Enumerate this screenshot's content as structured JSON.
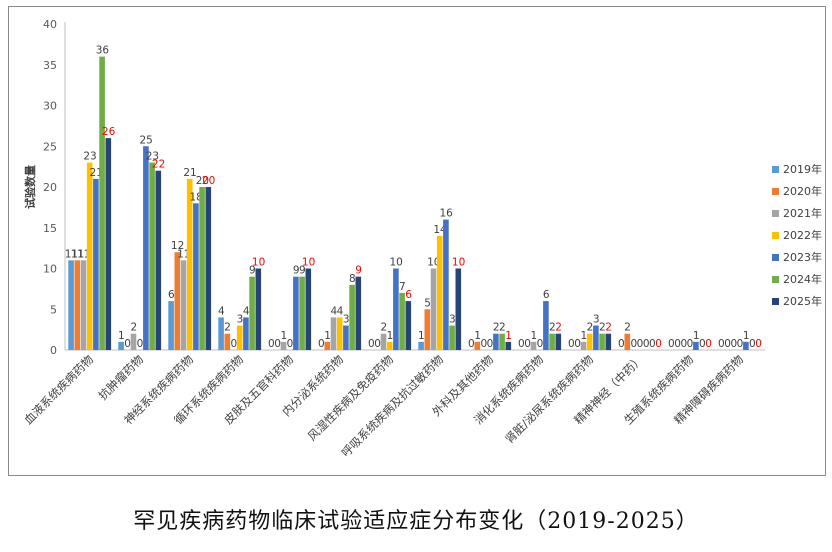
{
  "caption": "罕见疾病药物临床试验适应症分布变化（2019-2025）",
  "chart_data": {
    "type": "bar",
    "title": "",
    "xlabel": "",
    "ylabel": "试验数量",
    "ylim": [
      0,
      40
    ],
    "yticks": [
      0,
      5,
      10,
      15,
      20,
      25,
      30,
      35,
      40
    ],
    "grid": false,
    "legend_position": "right",
    "categories": [
      "血液系统疾病药物",
      "抗肿瘤药物",
      "神经系统疾病药物",
      "循环系统疾病药物",
      "皮肤及五官科药物",
      "内分泌系统药物",
      "风湿性疾病及免疫药物",
      "呼吸系统疾病及抗过敏药物",
      "外科及其他药物",
      "消化系统疾病药物",
      "肾脏/泌尿系统疾病药物",
      "精神神经（中药）",
      "生殖系统疾病药物",
      "精神障碍疾病药物"
    ],
    "series": [
      {
        "name": "2019年",
        "color": "#5b9bd5",
        "values": [
          11,
          1,
          6,
          4,
          0,
          0,
          0,
          1,
          0,
          0,
          0,
          0,
          0,
          0
        ]
      },
      {
        "name": "2020年",
        "color": "#ed7d31",
        "values": [
          11,
          0,
          12,
          2,
          0,
          1,
          0,
          5,
          1,
          0,
          0,
          2,
          0,
          0
        ]
      },
      {
        "name": "2021年",
        "color": "#a5a5a5",
        "values": [
          11,
          2,
          11,
          0,
          1,
          4,
          2,
          10,
          0,
          1,
          1,
          0,
          0,
          0
        ]
      },
      {
        "name": "2022年",
        "color": "#ffc000",
        "values": [
          23,
          0,
          21,
          3,
          0,
          4,
          1,
          14,
          0,
          0,
          2,
          0,
          0,
          0
        ]
      },
      {
        "name": "2023年",
        "color": "#4472c4",
        "values": [
          21,
          25,
          18,
          4,
          9,
          3,
          10,
          16,
          2,
          6,
          3,
          0,
          1,
          1
        ]
      },
      {
        "name": "2024年",
        "color": "#70ad47",
        "values": [
          36,
          23,
          20,
          9,
          9,
          8,
          7,
          3,
          2,
          2,
          2,
          0,
          0,
          0
        ]
      },
      {
        "name": "2025年",
        "color": "#264478",
        "values": [
          26,
          22,
          20,
          10,
          10,
          9,
          6,
          10,
          1,
          2,
          2,
          0,
          0,
          0
        ]
      }
    ],
    "highlight_label_color": "#ff0000"
  }
}
